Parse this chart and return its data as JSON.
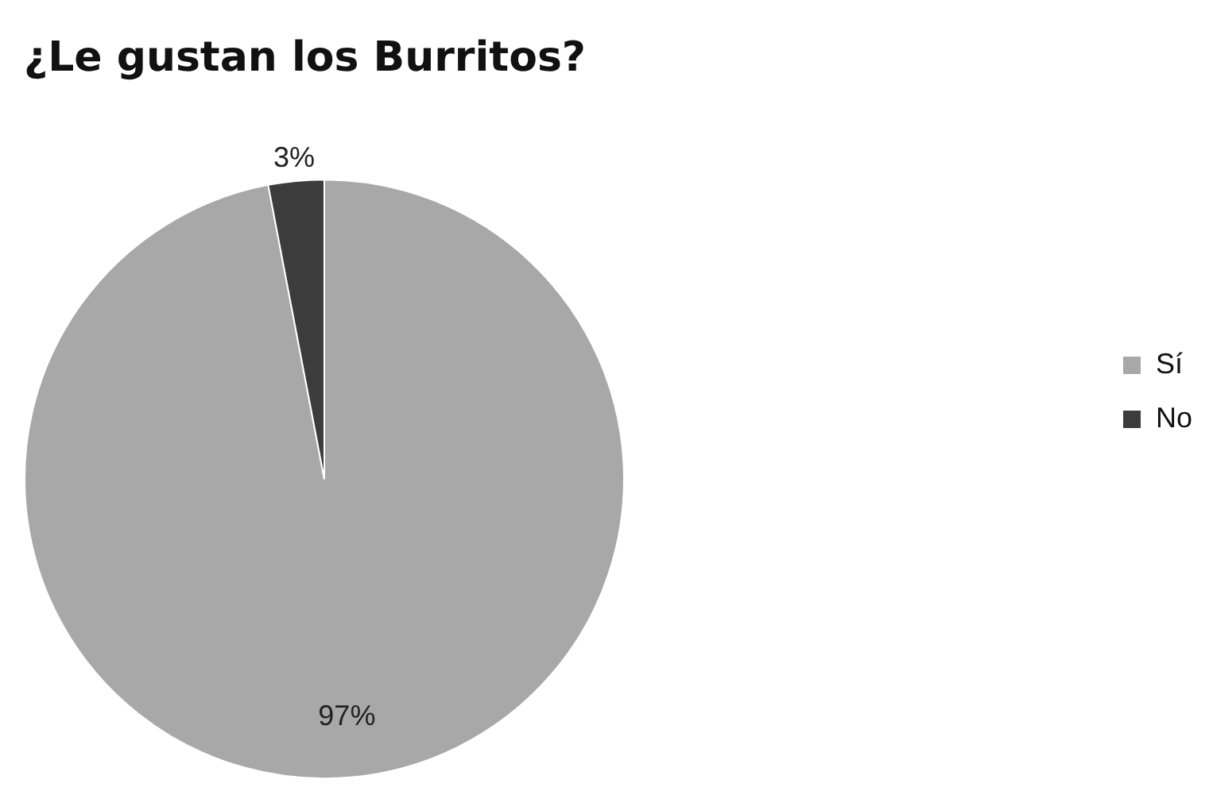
{
  "chart_data": {
    "type": "pie",
    "title": "¿Le gustan los Burritos?",
    "categories": [
      "Sí",
      "No"
    ],
    "values": [
      97,
      3
    ],
    "colors": [
      "#a8a8a8",
      "#3c3c3c"
    ],
    "value_labels": [
      "97%",
      "3%"
    ],
    "legend": "right"
  }
}
